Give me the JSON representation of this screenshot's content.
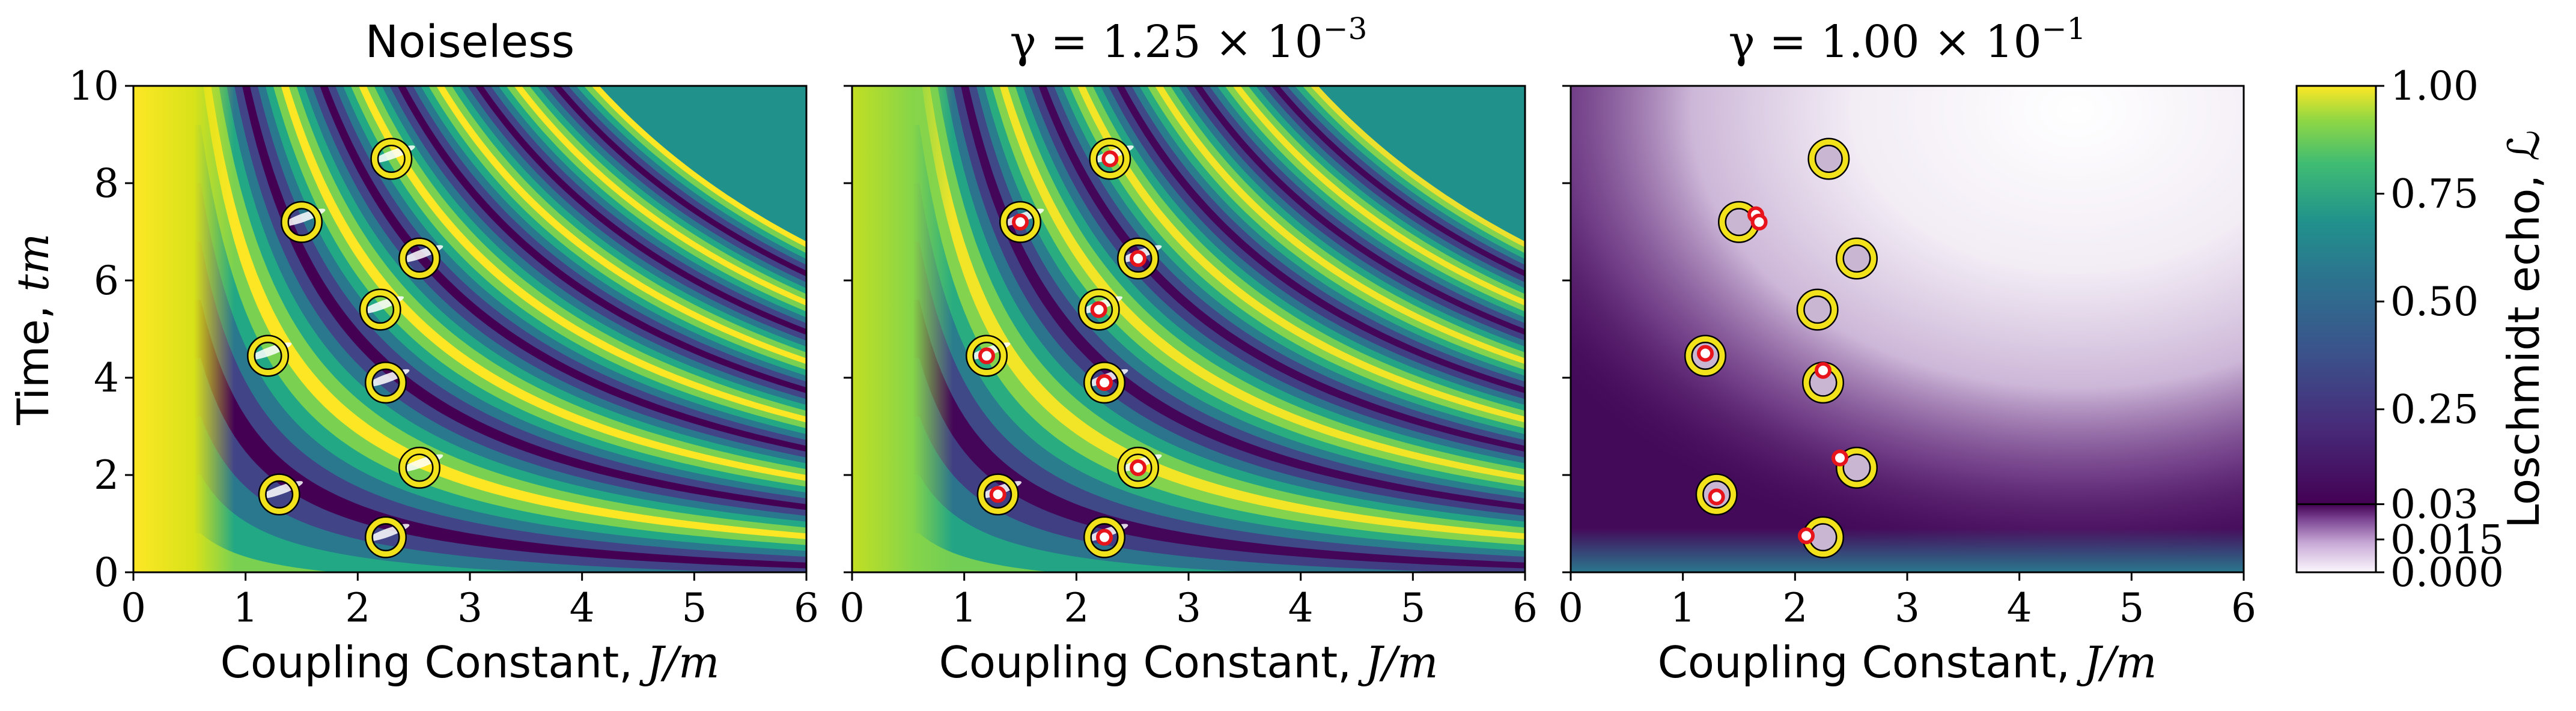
{
  "chart_data": [
    {
      "type": "heatmap",
      "title": "Noiseless",
      "xlabel": "Coupling Constant, J/m",
      "ylabel": "Time, tm",
      "xlim": [
        0,
        6
      ],
      "ylim": [
        0,
        10
      ],
      "xticks": [
        "0",
        "1",
        "2",
        "3",
        "4",
        "5",
        "6"
      ],
      "yticks": [
        "0",
        "2",
        "4",
        "6",
        "8",
        "10"
      ],
      "colormap": "viridis",
      "markers": [
        {
          "x": 2.3,
          "y": 8.5
        },
        {
          "x": 1.5,
          "y": 7.2
        },
        {
          "x": 2.55,
          "y": 6.45
        },
        {
          "x": 2.2,
          "y": 5.4
        },
        {
          "x": 1.2,
          "y": 4.45
        },
        {
          "x": 2.25,
          "y": 3.9
        },
        {
          "x": 2.55,
          "y": 2.15
        },
        {
          "x": 1.3,
          "y": 1.6
        },
        {
          "x": 2.25,
          "y": 0.72
        }
      ],
      "red_markers": []
    },
    {
      "type": "heatmap",
      "title": "γ = 1.25 × 10",
      "title_exponent": "−3",
      "xlabel": "Coupling Constant, J/m",
      "xlim": [
        0,
        6
      ],
      "ylim": [
        0,
        10
      ],
      "xticks": [
        "0",
        "1",
        "2",
        "3",
        "4",
        "5",
        "6"
      ],
      "colormap": "viridis",
      "markers": [
        {
          "x": 2.3,
          "y": 8.5
        },
        {
          "x": 1.5,
          "y": 7.2
        },
        {
          "x": 2.55,
          "y": 6.45
        },
        {
          "x": 2.2,
          "y": 5.4
        },
        {
          "x": 1.2,
          "y": 4.45
        },
        {
          "x": 2.25,
          "y": 3.9
        },
        {
          "x": 2.55,
          "y": 2.15
        },
        {
          "x": 1.3,
          "y": 1.6
        },
        {
          "x": 2.25,
          "y": 0.72
        }
      ],
      "red_markers": [
        {
          "x": 2.3,
          "y": 8.5
        },
        {
          "x": 1.5,
          "y": 7.2
        },
        {
          "x": 2.55,
          "y": 6.45
        },
        {
          "x": 2.2,
          "y": 5.4
        },
        {
          "x": 1.2,
          "y": 4.45
        },
        {
          "x": 2.25,
          "y": 3.9
        },
        {
          "x": 2.55,
          "y": 2.15
        },
        {
          "x": 1.3,
          "y": 1.6
        },
        {
          "x": 2.25,
          "y": 0.72
        }
      ]
    },
    {
      "type": "heatmap",
      "title": "γ = 1.00 × 10",
      "title_exponent": "−1",
      "xlabel": "Coupling Constant, J/m",
      "xlim": [
        0,
        6
      ],
      "ylim": [
        0,
        10
      ],
      "xticks": [
        "0",
        "1",
        "2",
        "3",
        "4",
        "5",
        "6"
      ],
      "colormap": "purple-threshold",
      "markers": [
        {
          "x": 2.3,
          "y": 8.5
        },
        {
          "x": 1.5,
          "y": 7.2
        },
        {
          "x": 2.55,
          "y": 6.45
        },
        {
          "x": 2.2,
          "y": 5.4
        },
        {
          "x": 1.2,
          "y": 4.45
        },
        {
          "x": 2.25,
          "y": 3.9
        },
        {
          "x": 2.55,
          "y": 2.15
        },
        {
          "x": 1.3,
          "y": 1.6
        },
        {
          "x": 2.25,
          "y": 0.72
        }
      ],
      "red_markers": [
        {
          "x": 1.65,
          "y": 7.35
        },
        {
          "x": 1.68,
          "y": 7.2
        },
        {
          "x": 1.2,
          "y": 4.5
        },
        {
          "x": 2.25,
          "y": 4.15
        },
        {
          "x": 2.4,
          "y": 2.35
        },
        {
          "x": 1.3,
          "y": 1.55
        },
        {
          "x": 2.1,
          "y": 0.75
        }
      ]
    }
  ],
  "colorbar": {
    "label": "Loschmidt echo, ℒ",
    "ticks": [
      {
        "value": 1.0,
        "label": "1.00"
      },
      {
        "value": 0.75,
        "label": "0.75"
      },
      {
        "value": 0.5,
        "label": "0.50"
      },
      {
        "value": 0.25,
        "label": "0.25"
      },
      {
        "value": 0.03,
        "label": "0.03"
      },
      {
        "value": 0.015,
        "label": "0.015"
      },
      {
        "value": 0.0,
        "label": "0.000"
      }
    ],
    "threshold": 0.03
  },
  "colors": {
    "marker_ring": "#f2e21b",
    "marker_edge": "#000000",
    "red_marker": "#e8141b",
    "noise_purple": "#440a5a"
  }
}
